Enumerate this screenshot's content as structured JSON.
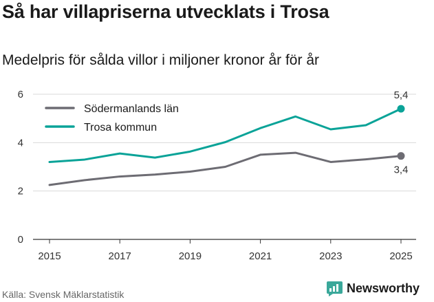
{
  "title": "Så har villapriserna utvecklats i Trosa",
  "subtitle": "Medelpris för sålda villor i miljoner kronor år för år",
  "source": "Källa: Svensk Mäklarstatistik",
  "brand": {
    "name": "Newsworthy",
    "icon": "newsworthy-logo-icon"
  },
  "colors": {
    "sodermanland": "#6d6c73",
    "trosa": "#0aa398",
    "brand": "#3aa89a"
  },
  "chart_data": {
    "type": "line",
    "title": "Så har villapriserna utvecklats i Trosa",
    "subtitle": "Medelpris för sålda villor i miljoner kronor år för år",
    "xlabel": "",
    "ylabel": "",
    "x": [
      2015,
      2016,
      2017,
      2018,
      2019,
      2020,
      2021,
      2022,
      2023,
      2024,
      2025
    ],
    "x_tick_labels": [
      "2015",
      "2017",
      "2019",
      "2021",
      "2023",
      "2025"
    ],
    "y_tick_labels": [
      "0",
      "2",
      "4",
      "6"
    ],
    "ylim": [
      0,
      6
    ],
    "grid": true,
    "legend_position": "top-left",
    "series": [
      {
        "name": "Södermanlands län",
        "color": "#6d6c73",
        "values": [
          2.25,
          2.45,
          2.6,
          2.68,
          2.8,
          3.0,
          3.5,
          3.58,
          3.2,
          3.31,
          3.45
        ],
        "end_label": "3,4"
      },
      {
        "name": "Trosa kommun",
        "color": "#0aa398",
        "values": [
          3.2,
          3.3,
          3.55,
          3.38,
          3.63,
          4.02,
          4.6,
          5.08,
          4.55,
          4.72,
          5.4
        ],
        "end_label": "5,4"
      }
    ]
  }
}
